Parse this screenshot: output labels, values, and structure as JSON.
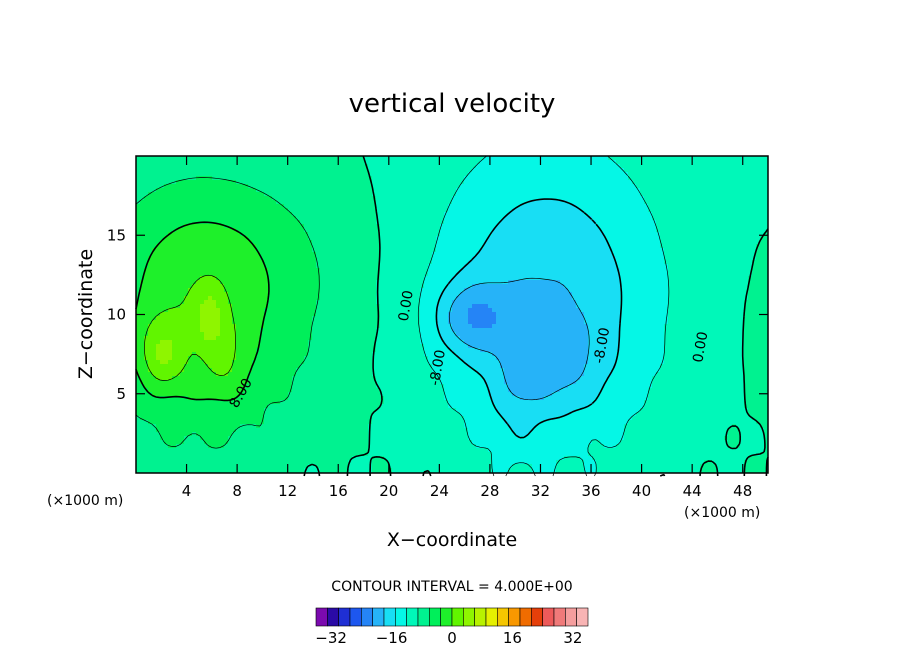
{
  "chart_data": {
    "type": "heatmap",
    "title": "vertical velocity",
    "xlabel": "X−coordinate",
    "ylabel": "Z−coordinate",
    "x_unit": "(×1000 m)",
    "y_unit": "(×1000 m)",
    "xlim": [
      0,
      50
    ],
    "ylim": [
      0,
      20
    ],
    "x_ticks": [
      4,
      8,
      12,
      16,
      20,
      24,
      28,
      32,
      36,
      40,
      44,
      48
    ],
    "y_ticks": [
      5,
      10,
      15
    ],
    "contour_interval_text": "CONTOUR INTERVAL = 4.000E+00",
    "contour_interval": 4,
    "contour_labels": [
      {
        "text": "0.00",
        "x": 21.7,
        "y": 10.5,
        "angle": -80
      },
      {
        "text": "8.00",
        "x": 8.6,
        "y": 4.9,
        "angle": -60
      },
      {
        "text": "-8.00",
        "x": 24.2,
        "y": 6.6,
        "angle": -80
      },
      {
        "text": "-8.00",
        "x": 37.2,
        "y": 8.0,
        "angle": -80
      },
      {
        "text": "0.00",
        "x": 45.0,
        "y": 7.9,
        "angle": -80
      }
    ],
    "features": [
      {
        "kind": "updraft",
        "x": 4.5,
        "z": 9.5,
        "sx": 5.0,
        "sz": 5.5,
        "amp": 10
      },
      {
        "kind": "updraft",
        "x": 2.0,
        "z": 7.5,
        "sx": 1.3,
        "sz": 1.6,
        "amp": 8
      },
      {
        "kind": "updraft",
        "x": 5.8,
        "z": 9.8,
        "sx": 0.8,
        "sz": 1.2,
        "amp": 7
      },
      {
        "kind": "updraft",
        "x": 7.0,
        "z": 7.0,
        "sx": 1.2,
        "sz": 1.8,
        "amp": 4
      },
      {
        "kind": "updraft",
        "x": 7.5,
        "z": 14.5,
        "sx": 7.0,
        "sz": 3.5,
        "amp": 3
      },
      {
        "kind": "updraft",
        "x": 13.0,
        "z": 9.0,
        "sx": 5.0,
        "sz": 5.0,
        "amp": 2
      },
      {
        "kind": "downdraft",
        "x": 32.5,
        "z": 11.0,
        "sx": 6.5,
        "sz": 7.0,
        "amp": -12
      },
      {
        "kind": "downdraft",
        "x": 26.5,
        "z": 9.8,
        "sx": 2.0,
        "sz": 1.6,
        "amp": -9
      },
      {
        "kind": "downdraft",
        "x": 33.5,
        "z": 7.0,
        "sx": 2.2,
        "sz": 2.0,
        "amp": -5
      },
      {
        "kind": "downdraft",
        "x": 30.2,
        "z": 5.5,
        "sx": 1.4,
        "sz": 2.8,
        "amp": -4
      },
      {
        "kind": "updraft",
        "x": 50.5,
        "z": 8.5,
        "sx": 1.3,
        "sz": 3.0,
        "amp": 4
      }
    ],
    "colorbar": {
      "min": -36,
      "max": 36,
      "step": 4,
      "tick_labels": [
        "−32",
        "−16",
        "0",
        "16",
        "32"
      ],
      "tick_values": [
        -32,
        -16,
        0,
        16,
        32
      ],
      "colors": [
        "#7b0aaf",
        "#2a0aa6",
        "#1f2fd4",
        "#1d57ef",
        "#2584f6",
        "#26b3f8",
        "#18def4",
        "#05f7e6",
        "#00f8b9",
        "#00f290",
        "#00ef5a",
        "#1ef02a",
        "#61f500",
        "#8ff500",
        "#b8f200",
        "#e6f000",
        "#f5c600",
        "#f89800",
        "#f06c00",
        "#e53f0a",
        "#ed5a5a",
        "#f07a7a",
        "#f59e9e",
        "#f8b4b4"
      ]
    }
  }
}
